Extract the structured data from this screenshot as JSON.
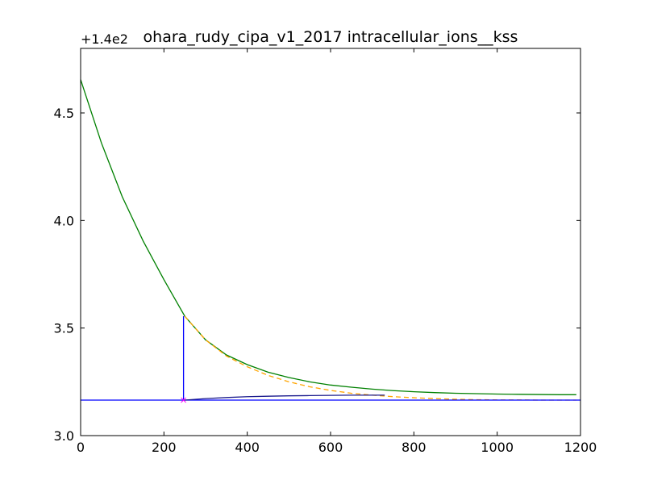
{
  "chart_data": {
    "type": "line",
    "title": "ohara_rudy_cipa_v1_2017 intracellular_ions__kss",
    "y_offset_label": "+1.4e2",
    "xlabel": "",
    "ylabel": "",
    "xlim": [
      0,
      1200
    ],
    "ylim": [
      3.0,
      4.8
    ],
    "x_ticks": [
      0,
      200,
      400,
      600,
      800,
      1000,
      1200
    ],
    "x_tick_labels": [
      "0",
      "200",
      "400",
      "600",
      "800",
      "1000",
      "1200"
    ],
    "y_ticks": [
      3.0,
      3.5,
      4.0,
      4.5
    ],
    "y_tick_labels": [
      "3.0",
      "3.5",
      "4.0",
      "4.5"
    ],
    "grid": false,
    "colors": {
      "green": "#008000",
      "orange": "#ffa500",
      "blue": "#0000ff",
      "marker": "#ff00ff"
    },
    "series": [
      {
        "name": "green-trajectory",
        "color": "#008000",
        "style": "solid",
        "x": [
          0,
          50,
          100,
          150,
          200,
          250,
          300,
          350,
          400,
          450,
          500,
          550,
          600,
          650,
          700,
          750,
          800,
          850,
          900,
          950,
          1000,
          1050,
          1100,
          1150,
          1190
        ],
        "y": [
          4.655,
          4.36,
          4.11,
          3.905,
          3.725,
          3.555,
          3.445,
          3.375,
          3.33,
          3.295,
          3.27,
          3.25,
          3.235,
          3.225,
          3.216,
          3.209,
          3.204,
          3.2,
          3.197,
          3.195,
          3.193,
          3.192,
          3.191,
          3.19,
          3.19
        ]
      },
      {
        "name": "orange-dashed-extrapolation",
        "color": "#ffa500",
        "style": "dashed",
        "x": [
          250,
          300,
          350,
          400,
          450,
          500,
          550,
          600,
          650,
          700,
          750,
          800,
          850,
          900,
          950,
          1000,
          1050,
          1100,
          1150,
          1190
        ],
        "y": [
          3.555,
          3.445,
          3.37,
          3.32,
          3.28,
          3.25,
          3.227,
          3.21,
          3.197,
          3.188,
          3.181,
          3.176,
          3.172,
          3.169,
          3.167,
          3.166,
          3.166,
          3.165,
          3.165,
          3.165
        ]
      },
      {
        "name": "blue-horizontal-reference",
        "color": "#0000ff",
        "style": "solid",
        "x": [
          0,
          1200
        ],
        "y": [
          3.165,
          3.165
        ]
      },
      {
        "name": "blue-vertical-drop",
        "color": "#0000ff",
        "style": "solid",
        "x": [
          247,
          247
        ],
        "y": [
          3.555,
          3.165
        ]
      },
      {
        "name": "dark-blue-rise",
        "color": "#1a1a8c",
        "style": "solid",
        "x": [
          250,
          300,
          350,
          400,
          450,
          500,
          550,
          600,
          650,
          700,
          730
        ],
        "y": [
          3.165,
          3.172,
          3.177,
          3.181,
          3.183,
          3.185,
          3.186,
          3.187,
          3.188,
          3.188,
          3.188
        ]
      }
    ],
    "markers": [
      {
        "name": "cross-marker",
        "x": 247,
        "y": 3.165,
        "symbol": "x",
        "color": "#ff00ff"
      }
    ]
  }
}
